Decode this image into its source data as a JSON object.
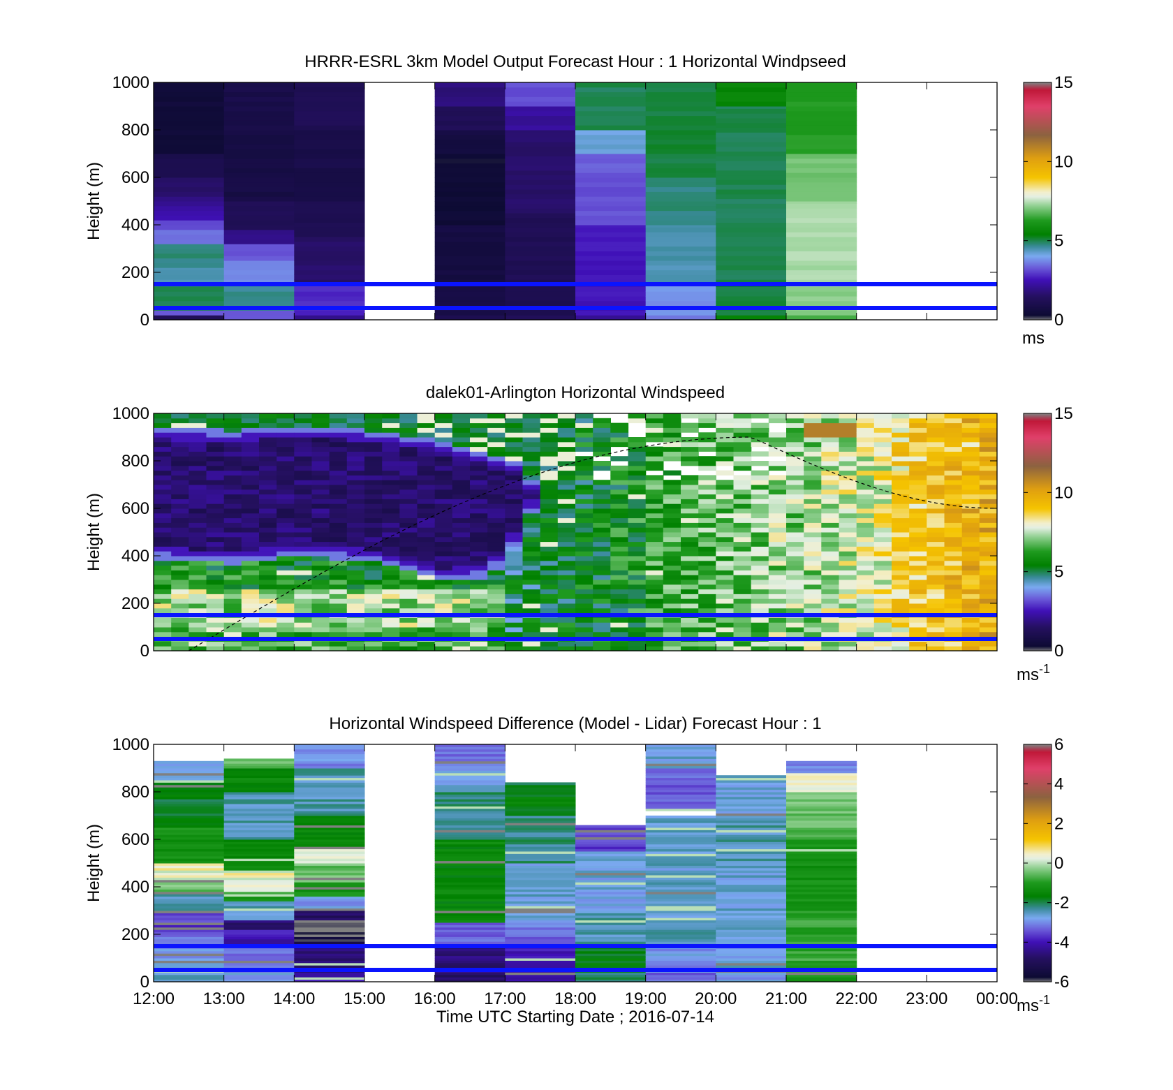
{
  "figure": {
    "xlabel": "Time UTC  Starting Date ; 2016-07-14",
    "xticks": [
      "12:00",
      "13:00",
      "14:00",
      "15:00",
      "16:00",
      "17:00",
      "18:00",
      "19:00",
      "20:00",
      "21:00",
      "22:00",
      "23:00",
      "00:00"
    ]
  },
  "colors": {
    "ref_line": "#0a14ff",
    "colormap": [
      {
        "v": 0.0,
        "c": "#808080"
      },
      {
        "v": 0.02,
        "c": "#0d0b33"
      },
      {
        "v": 0.1,
        "c": "#251060"
      },
      {
        "v": 0.17,
        "c": "#4010b8"
      },
      {
        "v": 0.22,
        "c": "#6a5ad8"
      },
      {
        "v": 0.27,
        "c": "#7aaaf0"
      },
      {
        "v": 0.31,
        "c": "#3a8a9a"
      },
      {
        "v": 0.36,
        "c": "#008000"
      },
      {
        "v": 0.42,
        "c": "#1f9a1f"
      },
      {
        "v": 0.48,
        "c": "#8ecf8e"
      },
      {
        "v": 0.52,
        "c": "#e4efe2"
      },
      {
        "v": 0.54,
        "c": "#f3efcc"
      },
      {
        "v": 0.6,
        "c": "#f5c400"
      },
      {
        "v": 0.68,
        "c": "#e0a010"
      },
      {
        "v": 0.78,
        "c": "#8c6240"
      },
      {
        "v": 0.9,
        "c": "#e0406a"
      },
      {
        "v": 0.97,
        "c": "#c01838"
      },
      {
        "v": 1.0,
        "c": "#808080"
      }
    ]
  },
  "chart_data": [
    {
      "type": "heatmap",
      "title": "HRRR-ESRL 3km Model Output   Forecast Hour : 1 Horizontal Windpseed",
      "ylabel": "Height (m)",
      "xlabel": "",
      "x_hours": [
        "12:00",
        "13:00",
        "14:00",
        "15:00",
        "16:00",
        "17:00",
        "18:00",
        "19:00",
        "20:00",
        "21:00",
        "22:00",
        "23:00",
        "00:00"
      ],
      "ylim": [
        0,
        1000
      ],
      "yticks": [
        0,
        200,
        400,
        600,
        800,
        1000
      ],
      "colorbar": {
        "range": [
          0,
          15
        ],
        "ticks": [
          0,
          5,
          10,
          15
        ],
        "unit": "ms"
      },
      "reference_lines_m": [
        50,
        150
      ],
      "columns": [
        {
          "x0": 0,
          "x1": 1,
          "levels": [
            [
              0,
              20,
              1.3
            ],
            [
              20,
              40,
              3.2
            ],
            [
              40,
              150,
              5.0
            ],
            [
              150,
              220,
              4.5
            ],
            [
              220,
              320,
              4.8
            ],
            [
              320,
              380,
              3.5
            ],
            [
              380,
              420,
              3.2
            ],
            [
              420,
              480,
              2.4
            ],
            [
              480,
              520,
              2.0
            ],
            [
              520,
              600,
              1.6
            ],
            [
              600,
              700,
              1.0
            ],
            [
              700,
              1000,
              0.5
            ]
          ]
        },
        {
          "x0": 1,
          "x1": 2,
          "levels": [
            [
              0,
              40,
              3.2
            ],
            [
              40,
              150,
              4.7
            ],
            [
              150,
              250,
              3.8
            ],
            [
              250,
              320,
              3.2
            ],
            [
              320,
              380,
              2.0
            ],
            [
              380,
              500,
              1.2
            ],
            [
              500,
              800,
              0.8
            ],
            [
              800,
              1000,
              0.9
            ]
          ]
        },
        {
          "x0": 2,
          "x1": 3,
          "levels": [
            [
              0,
              20,
              2.0
            ],
            [
              20,
              150,
              2.8
            ],
            [
              150,
              350,
              1.6
            ],
            [
              350,
              500,
              1.1
            ],
            [
              500,
              800,
              0.9
            ],
            [
              800,
              1000,
              1.2
            ]
          ]
        },
        {
          "x0": 4,
          "x1": 5,
          "levels": [
            [
              0,
              20,
              1.0
            ],
            [
              20,
              150,
              0.9
            ],
            [
              150,
              400,
              0.7
            ],
            [
              400,
              700,
              0.4
            ],
            [
              700,
              800,
              0.7
            ],
            [
              800,
              900,
              1.2
            ],
            [
              900,
              1000,
              1.8
            ]
          ]
        },
        {
          "x0": 5,
          "x1": 6,
          "levels": [
            [
              0,
              20,
              1.2
            ],
            [
              20,
              150,
              1.0
            ],
            [
              150,
              450,
              1.2
            ],
            [
              450,
              800,
              1.6
            ],
            [
              800,
              900,
              2.2
            ],
            [
              900,
              1000,
              3.2
            ]
          ]
        },
        {
          "x0": 6,
          "x1": 7,
          "levels": [
            [
              0,
              20,
              2.2
            ],
            [
              20,
              150,
              2.6
            ],
            [
              150,
              400,
              2.6
            ],
            [
              400,
              600,
              3.2
            ],
            [
              600,
              700,
              3.3
            ],
            [
              700,
              800,
              4.2
            ],
            [
              800,
              1000,
              5.0
            ]
          ]
        },
        {
          "x0": 7,
          "x1": 8,
          "levels": [
            [
              0,
              20,
              3.6
            ],
            [
              20,
              150,
              3.8
            ],
            [
              150,
              400,
              4.5
            ],
            [
              400,
              600,
              4.8
            ],
            [
              600,
              1000,
              5.1
            ]
          ]
        },
        {
          "x0": 8,
          "x1": 9,
          "levels": [
            [
              0,
              20,
              5.5
            ],
            [
              20,
              150,
              5.1
            ],
            [
              150,
              900,
              5.0
            ],
            [
              900,
              1000,
              5.6
            ]
          ]
        },
        {
          "x0": 9,
          "x1": 10,
          "levels": [
            [
              0,
              20,
              6.5
            ],
            [
              20,
              150,
              7.2
            ],
            [
              150,
              500,
              7.4
            ],
            [
              500,
              700,
              7.0
            ],
            [
              700,
              1000,
              6.3
            ]
          ]
        }
      ]
    },
    {
      "type": "heatmap",
      "title": "dalek01-Arlington  Horizontal Windspeed",
      "ylabel": "Height (m)",
      "xlabel": "",
      "x_hours": [
        "12:00",
        "13:00",
        "14:00",
        "15:00",
        "16:00",
        "17:00",
        "18:00",
        "19:00",
        "20:00",
        "21:00",
        "22:00",
        "23:00",
        "00:00"
      ],
      "ylim": [
        0,
        1000
      ],
      "yticks": [
        0,
        200,
        400,
        600,
        800,
        1000
      ],
      "colorbar": {
        "range": [
          0,
          15
        ],
        "ticks": [
          0,
          5,
          10,
          15
        ],
        "unit": "ms-1"
      },
      "reference_lines_m": [
        50,
        150
      ],
      "data_end_hour": 11.8,
      "bin_hours": 0.25,
      "bin_m": 20,
      "purple_top": [
        [
          0,
          930
        ],
        [
          1,
          920
        ],
        [
          2,
          940
        ],
        [
          3,
          920
        ],
        [
          4,
          880
        ],
        [
          5,
          800
        ],
        [
          5.3,
          700
        ],
        [
          5.5,
          560
        ],
        [
          6.0,
          400
        ],
        [
          11.8,
          400
        ]
      ],
      "purple_bottom": [
        [
          0,
          380
        ],
        [
          1,
          360
        ],
        [
          2,
          390
        ],
        [
          3,
          370
        ],
        [
          4,
          290
        ],
        [
          4.6,
          300
        ],
        [
          4.9,
          380
        ],
        [
          5.3,
          600
        ],
        [
          5.5,
          700
        ],
        [
          11.8,
          700
        ]
      ],
      "dashed_curve": {
        "peak_hour": 20.5,
        "peak_m": 900,
        "start_hour": 12.5,
        "end_hour": 24.0,
        "end_m": 600
      }
    },
    {
      "type": "heatmap",
      "title": "Horizontal Windspeed Difference (Model - Lidar) Forecast Hour : 1",
      "ylabel": "Height (m)",
      "xlabel": "Time UTC  Starting Date ; 2016-07-14",
      "x_hours": [
        "12:00",
        "13:00",
        "14:00",
        "15:00",
        "16:00",
        "17:00",
        "18:00",
        "19:00",
        "20:00",
        "21:00",
        "22:00",
        "23:00",
        "00:00"
      ],
      "ylim": [
        0,
        1000
      ],
      "yticks": [
        0,
        200,
        400,
        600,
        800,
        1000
      ],
      "colorbar": {
        "range": [
          -6,
          6
        ],
        "ticks": [
          -6,
          -4,
          -2,
          0,
          2,
          4,
          6
        ],
        "unit": "ms-1"
      },
      "reference_lines_m": [
        50,
        150
      ],
      "columns": [
        {
          "x0": 0,
          "x1": 1,
          "top": 930,
          "levels": [
            [
              0,
              40,
              -2.5
            ],
            [
              40,
              150,
              -2.8
            ],
            [
              150,
              200,
              -3.1
            ],
            [
              200,
              300,
              -3.6
            ],
            [
              300,
              380,
              -2.5
            ],
            [
              380,
              420,
              -0.5
            ],
            [
              420,
              500,
              0.6
            ],
            [
              500,
              650,
              -1.2
            ],
            [
              650,
              850,
              -1.8
            ],
            [
              850,
              930,
              -2.6
            ]
          ]
        },
        {
          "x0": 1,
          "x1": 2,
          "top": 940,
          "levels": [
            [
              0,
              40,
              -2.8
            ],
            [
              40,
              150,
              -3.2
            ],
            [
              150,
              220,
              -4.0
            ],
            [
              220,
              260,
              -4.6
            ],
            [
              260,
              340,
              -2.5
            ],
            [
              340,
              380,
              -1.0
            ],
            [
              380,
              460,
              0.5
            ],
            [
              460,
              600,
              -1.5
            ],
            [
              600,
              800,
              -2.4
            ],
            [
              800,
              900,
              -1.5
            ],
            [
              900,
              940,
              -0.5
            ]
          ]
        },
        {
          "x0": 2,
          "x1": 3,
          "top": 1000,
          "levels": [
            [
              0,
              40,
              -4.0
            ],
            [
              40,
              150,
              -4.7
            ],
            [
              150,
              190,
              -5.6
            ],
            [
              190,
              250,
              -5.9
            ],
            [
              250,
              310,
              -4.8
            ],
            [
              310,
              360,
              -2.8
            ],
            [
              360,
              420,
              -1.2
            ],
            [
              420,
              500,
              -0.5
            ],
            [
              500,
              560,
              0.3
            ],
            [
              560,
              700,
              -1.6
            ],
            [
              700,
              900,
              -2.4
            ],
            [
              900,
              1000,
              -3.0
            ]
          ]
        },
        {
          "x0": 4,
          "x1": 5,
          "top": 1000,
          "levels": [
            [
              0,
              40,
              -4.8
            ],
            [
              40,
              150,
              -4.6
            ],
            [
              150,
              250,
              -3.3
            ],
            [
              250,
              600,
              -1.5
            ],
            [
              600,
              800,
              -2.2
            ],
            [
              800,
              900,
              -2.7
            ],
            [
              900,
              1000,
              -3.1
            ]
          ]
        },
        {
          "x0": 5,
          "x1": 6,
          "top": 840,
          "levels": [
            [
              0,
              40,
              -4.3
            ],
            [
              40,
              150,
              -4.0
            ],
            [
              150,
              250,
              -3.2
            ],
            [
              250,
              500,
              -2.6
            ],
            [
              500,
              700,
              -2.2
            ],
            [
              700,
              800,
              -1.6
            ],
            [
              800,
              840,
              -1.8
            ]
          ]
        },
        {
          "x0": 6,
          "x1": 7,
          "top": 660,
          "levels": [
            [
              0,
              40,
              -2.0
            ],
            [
              40,
              150,
              -1.7
            ],
            [
              150,
              300,
              -2.4
            ],
            [
              300,
              550,
              -2.7
            ],
            [
              550,
              660,
              -3.6
            ]
          ]
        },
        {
          "x0": 7,
          "x1": 8,
          "top": 1000,
          "levels": [
            [
              0,
              40,
              -3.3
            ],
            [
              40,
              150,
              -2.9
            ],
            [
              150,
              300,
              -2.5
            ],
            [
              300,
              700,
              -2.6
            ],
            [
              720,
              900,
              -3.3
            ],
            [
              900,
              1000,
              -2.6
            ]
          ]
        },
        {
          "x0": 8,
          "x1": 9,
          "top": 870,
          "levels": [
            [
              0,
              40,
              -2.8
            ],
            [
              40,
              150,
              -2.7
            ],
            [
              150,
              500,
              -2.6
            ],
            [
              500,
              700,
              -2.4
            ],
            [
              700,
              870,
              -2.7
            ]
          ]
        },
        {
          "x0": 9,
          "x1": 10,
          "top": 930,
          "levels": [
            [
              0,
              40,
              -1.2
            ],
            [
              40,
              150,
              -0.8
            ],
            [
              150,
              300,
              -0.9
            ],
            [
              300,
              600,
              -1.2
            ],
            [
              600,
              800,
              -0.5
            ],
            [
              800,
              880,
              0.4
            ],
            [
              880,
              930,
              -3.0
            ]
          ]
        }
      ]
    }
  ]
}
